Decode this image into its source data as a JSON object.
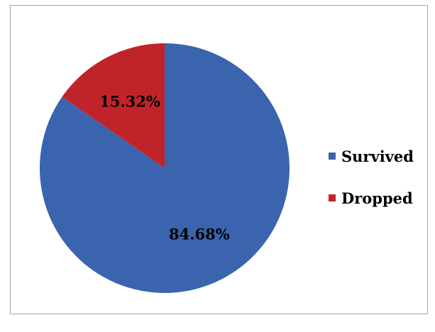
{
  "chart_data": {
    "type": "pie",
    "title": "",
    "categories": [
      "Survived",
      "Dropped"
    ],
    "values": [
      84.68,
      15.32
    ],
    "labels": [
      "84.68%",
      "15.32%"
    ],
    "colors": [
      "#3a64ad",
      "#c0242a"
    ],
    "start_angle_deg": 0,
    "direction": "clockwise",
    "legend": {
      "placement": "right",
      "items": [
        {
          "label": "Survived",
          "color": "#3a64ad"
        },
        {
          "label": "Dropped",
          "color": "#c0242a"
        }
      ]
    }
  }
}
